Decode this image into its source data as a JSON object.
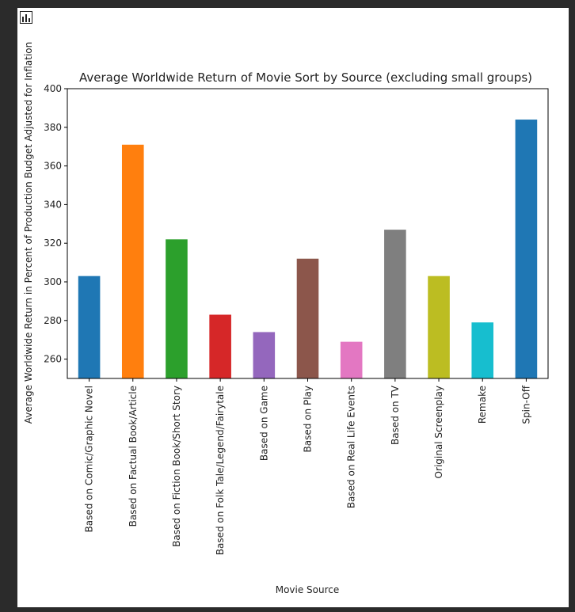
{
  "toolbar": {
    "icon": "bar-chart-icon"
  },
  "chart_data": {
    "type": "bar",
    "title": "Average Worldwide Return of Movie Sort by Source (excluding small groups)",
    "xlabel": "Movie Source",
    "ylabel": "Average Worldwide Return in Percent of Production Budget Adjusted for Inflation",
    "ylim": [
      250,
      400
    ],
    "yticks": [
      260,
      280,
      300,
      320,
      340,
      360,
      380,
      400
    ],
    "grid": false,
    "categories": [
      "Based on Comic/Graphic Novel",
      "Based on Factual Book/Article",
      "Based on Fiction Book/Short Story",
      "Based on Folk Tale/Legend/Fairytale",
      "Based on Game",
      "Based on Play",
      "Based on Real Life Events",
      "Based on TV",
      "Original Screenplay",
      "Remake",
      "Spin-Off"
    ],
    "values": [
      303,
      371,
      322,
      283,
      274,
      312,
      269,
      327,
      303,
      279,
      384
    ],
    "colors": [
      "#1f77b4",
      "#ff7f0e",
      "#2ca02c",
      "#d62728",
      "#9467bd",
      "#8c564b",
      "#e377c2",
      "#7f7f7f",
      "#bcbd22",
      "#17becf",
      "#1f77b4"
    ]
  }
}
